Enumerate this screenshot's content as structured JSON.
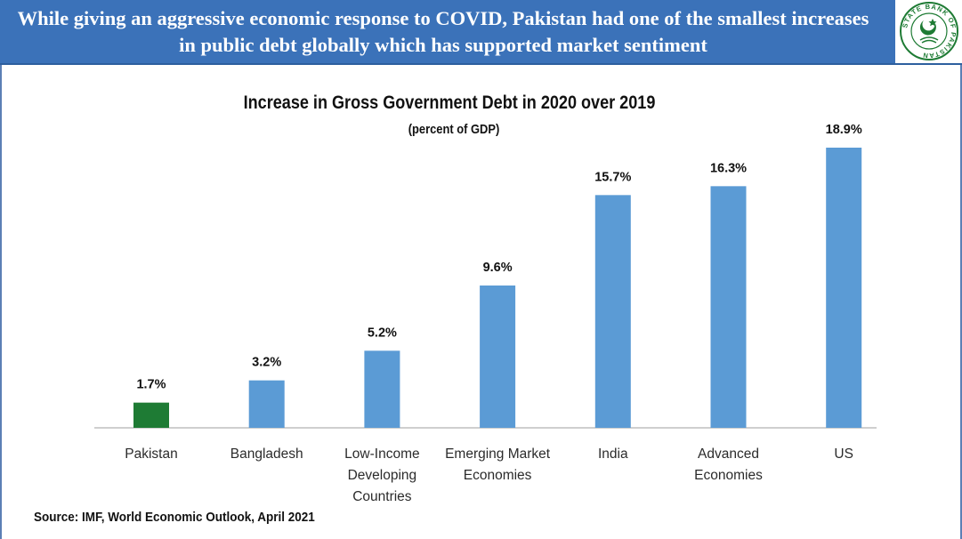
{
  "header": {
    "title": "While giving an aggressive economic response to COVID, Pakistan had one of the smallest increases in public debt globally which has supported market sentiment",
    "logo_text": "STATE BANK OF PAKISTAN"
  },
  "chart_data": {
    "type": "bar",
    "title": "Increase in Gross Government Debt in 2020 over 2019",
    "subtitle": "(percent of GDP)",
    "categories": [
      "Pakistan",
      "Bangladesh",
      "Low-Income Developing Countries",
      "Emerging Market Economies",
      "India",
      "Advanced Economies",
      "US"
    ],
    "category_lines": [
      [
        "Pakistan"
      ],
      [
        "Bangladesh"
      ],
      [
        "Low-Income",
        "Developing",
        "Countries"
      ],
      [
        "Emerging Market",
        "Economies"
      ],
      [
        "India"
      ],
      [
        "Advanced",
        "Economies"
      ],
      [
        "US"
      ]
    ],
    "values": [
      1.7,
      3.2,
      5.2,
      9.6,
      15.7,
      16.3,
      18.9
    ],
    "data_labels": [
      "1.7%",
      "3.2%",
      "5.2%",
      "9.6%",
      "15.7%",
      "16.3%",
      "18.9%"
    ],
    "colors": [
      "#1e7b34",
      "#5b9bd5",
      "#5b9bd5",
      "#5b9bd5",
      "#5b9bd5",
      "#5b9bd5",
      "#5b9bd5"
    ],
    "ylim": [
      0,
      18.9
    ],
    "xlabel": "",
    "ylabel": "",
    "grid": false
  },
  "footer": {
    "source": "Source: IMF, World Economic Outlook, April 2021"
  }
}
